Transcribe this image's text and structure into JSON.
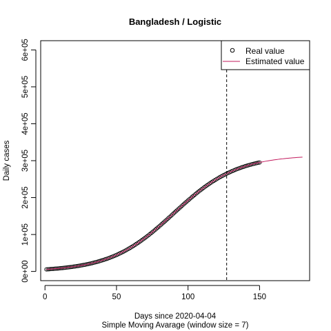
{
  "chart_data": {
    "type": "scatter",
    "title": "Bangladesh / Logistic",
    "xlabel": "Days since 2020-04-04",
    "sublabel": "Simple Moving Avarage (window size = 7)",
    "ylabel": "Daily cases",
    "xlim": [
      -3,
      185
    ],
    "ylim": [
      -25000,
      625000
    ],
    "x_ticks": [
      0,
      50,
      100,
      150
    ],
    "x_tick_labels": [
      "0",
      "50",
      "100",
      "150"
    ],
    "y_ticks": [
      0,
      100000,
      200000,
      300000,
      400000,
      500000,
      600000
    ],
    "y_tick_labels": [
      "0e+00",
      "1e+05",
      "2e+05",
      "3e+05",
      "4e+05",
      "5e+05",
      "6e+05"
    ],
    "vline_x": 127,
    "grid": false,
    "legend_position": "top-right",
    "series": [
      {
        "name": "Real value",
        "style": "points",
        "x_start": 1,
        "x_end": 150,
        "x_step": 1
      },
      {
        "name": "Estimated value",
        "style": "line",
        "color": "#C2185B",
        "x_start": 1,
        "x_end": 180,
        "x_step": 1
      }
    ],
    "model": {
      "form": "logistic",
      "K": 315000,
      "r": 0.045,
      "x0": 90
    }
  }
}
